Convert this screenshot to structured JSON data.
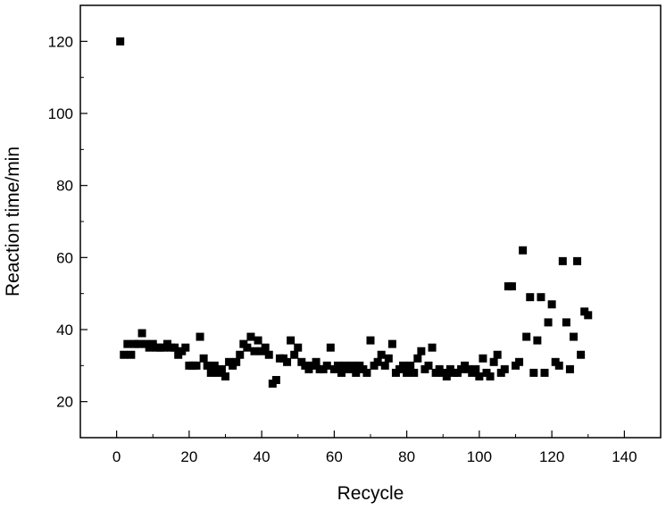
{
  "chart_data": {
    "type": "scatter",
    "title": "",
    "xlabel": "Recycle",
    "ylabel": "Reaction time/min",
    "xlim": [
      -10,
      150
    ],
    "ylim": [
      10,
      130
    ],
    "xticks": [
      0,
      20,
      40,
      60,
      80,
      100,
      120,
      140
    ],
    "yticks": [
      20,
      40,
      60,
      80,
      100,
      120
    ],
    "grid": false,
    "legend": "none",
    "marker": "square",
    "marker_color": "#000000",
    "series": [
      {
        "points": [
          [
            1,
            120
          ],
          [
            2,
            33
          ],
          [
            3,
            36
          ],
          [
            4,
            33
          ],
          [
            5,
            36
          ],
          [
            6,
            36
          ],
          [
            7,
            39
          ],
          [
            8,
            36
          ],
          [
            9,
            35
          ],
          [
            10,
            36
          ],
          [
            11,
            35
          ],
          [
            12,
            35
          ],
          [
            13,
            35
          ],
          [
            14,
            36
          ],
          [
            15,
            35
          ],
          [
            16,
            35
          ],
          [
            17,
            33
          ],
          [
            18,
            34
          ],
          [
            19,
            35
          ],
          [
            20,
            30
          ],
          [
            21,
            30
          ],
          [
            22,
            30
          ],
          [
            23,
            38
          ],
          [
            24,
            32
          ],
          [
            25,
            30
          ],
          [
            26,
            28
          ],
          [
            27,
            30
          ],
          [
            28,
            28
          ],
          [
            29,
            29
          ],
          [
            30,
            27
          ],
          [
            31,
            31
          ],
          [
            32,
            30
          ],
          [
            33,
            31
          ],
          [
            34,
            33
          ],
          [
            35,
            36
          ],
          [
            36,
            35
          ],
          [
            37,
            38
          ],
          [
            38,
            34
          ],
          [
            39,
            37
          ],
          [
            40,
            34
          ],
          [
            41,
            35
          ],
          [
            42,
            33
          ],
          [
            43,
            25
          ],
          [
            44,
            26
          ],
          [
            45,
            32
          ],
          [
            46,
            32
          ],
          [
            47,
            31
          ],
          [
            48,
            37
          ],
          [
            49,
            33
          ],
          [
            50,
            35
          ],
          [
            51,
            31
          ],
          [
            52,
            30
          ],
          [
            53,
            29
          ],
          [
            54,
            30
          ],
          [
            55,
            31
          ],
          [
            56,
            29
          ],
          [
            57,
            29
          ],
          [
            58,
            30
          ],
          [
            59,
            35
          ],
          [
            60,
            29
          ],
          [
            61,
            30
          ],
          [
            62,
            28
          ],
          [
            63,
            30
          ],
          [
            64,
            29
          ],
          [
            65,
            30
          ],
          [
            66,
            28
          ],
          [
            67,
            30
          ],
          [
            68,
            29
          ],
          [
            69,
            28
          ],
          [
            70,
            37
          ],
          [
            71,
            30
          ],
          [
            72,
            31
          ],
          [
            73,
            33
          ],
          [
            74,
            30
          ],
          [
            75,
            32
          ],
          [
            76,
            36
          ],
          [
            77,
            28
          ],
          [
            78,
            29
          ],
          [
            79,
            30
          ],
          [
            80,
            28
          ],
          [
            81,
            30
          ],
          [
            82,
            28
          ],
          [
            83,
            32
          ],
          [
            84,
            34
          ],
          [
            85,
            29
          ],
          [
            86,
            30
          ],
          [
            87,
            35
          ],
          [
            88,
            28
          ],
          [
            89,
            29
          ],
          [
            90,
            28
          ],
          [
            91,
            27
          ],
          [
            92,
            29
          ],
          [
            93,
            28
          ],
          [
            94,
            28
          ],
          [
            95,
            29
          ],
          [
            96,
            30
          ],
          [
            97,
            29
          ],
          [
            98,
            28
          ],
          [
            99,
            29
          ],
          [
            100,
            27
          ],
          [
            101,
            32
          ],
          [
            102,
            28
          ],
          [
            103,
            27
          ],
          [
            104,
            31
          ],
          [
            105,
            33
          ],
          [
            106,
            28
          ],
          [
            107,
            29
          ],
          [
            108,
            52
          ],
          [
            109,
            52
          ],
          [
            110,
            30
          ],
          [
            111,
            31
          ],
          [
            112,
            62
          ],
          [
            113,
            38
          ],
          [
            114,
            49
          ],
          [
            115,
            28
          ],
          [
            116,
            37
          ],
          [
            117,
            49
          ],
          [
            118,
            28
          ],
          [
            119,
            42
          ],
          [
            120,
            47
          ],
          [
            121,
            31
          ],
          [
            122,
            30
          ],
          [
            123,
            59
          ],
          [
            124,
            42
          ],
          [
            125,
            29
          ],
          [
            126,
            38
          ],
          [
            127,
            59
          ],
          [
            128,
            33
          ],
          [
            129,
            45
          ],
          [
            130,
            44
          ]
        ]
      }
    ]
  }
}
